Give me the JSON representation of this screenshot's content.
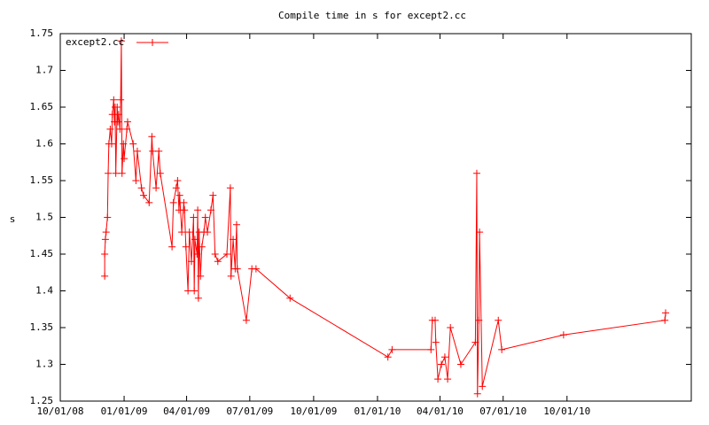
{
  "chart_data": {
    "type": "line",
    "title": "Compile time in s for except2.cc",
    "y_label": "s",
    "legend_position": "top-left",
    "xlim": [
      "2008-10-01",
      "2011-03-29"
    ],
    "xticks": [
      {
        "value": "2008-10-01",
        "label": "10/01/08"
      },
      {
        "value": "2009-01-01",
        "label": "01/01/09"
      },
      {
        "value": "2009-04-01",
        "label": "04/01/09"
      },
      {
        "value": "2009-07-01",
        "label": "07/01/09"
      },
      {
        "value": "2009-10-01",
        "label": "10/01/09"
      },
      {
        "value": "2010-01-01",
        "label": "01/01/10"
      },
      {
        "value": "2010-04-01",
        "label": "04/01/10"
      },
      {
        "value": "2010-07-01",
        "label": "07/01/10"
      },
      {
        "value": "2010-10-01",
        "label": "10/01/10"
      }
    ],
    "ylim": [
      1.25,
      1.75
    ],
    "yticks": [
      1.25,
      1.3,
      1.35,
      1.4,
      1.45,
      1.5,
      1.55,
      1.6,
      1.65,
      1.7,
      1.75
    ],
    "x": [
      "2008-12-04",
      "2008-12-04",
      "2008-12-05",
      "2008-12-06",
      "2008-12-08",
      "2008-12-09",
      "2008-12-10",
      "2008-12-12",
      "2008-12-14",
      "2008-12-15",
      "2008-12-17",
      "2008-12-18",
      "2008-12-19",
      "2008-12-20",
      "2008-12-22",
      "2008-12-23",
      "2008-12-24",
      "2008-12-26",
      "2008-12-27",
      "2008-12-28",
      "2008-12-29",
      "2008-12-31",
      "2009-01-01",
      "2009-01-05",
      "2009-01-06",
      "2009-01-14",
      "2009-01-18",
      "2009-01-20",
      "2009-01-26",
      "2009-01-29",
      "2009-02-06",
      "2009-02-10",
      "2009-02-11",
      "2009-02-16",
      "2009-02-20",
      "2009-02-22",
      "2009-03-11",
      "2009-03-13",
      "2009-03-17",
      "2009-03-19",
      "2009-03-21",
      "2009-03-22",
      "2009-03-25",
      "2009-03-28",
      "2009-03-29",
      "2009-03-31",
      "2009-04-03",
      "2009-04-05",
      "2009-04-08",
      "2009-04-11",
      "2009-04-12",
      "2009-04-13",
      "2009-04-16",
      "2009-04-17",
      "2009-04-18",
      "2009-04-19",
      "2009-04-21",
      "2009-04-23",
      "2009-04-26",
      "2009-04-28",
      "2009-05-01",
      "2009-05-06",
      "2009-05-09",
      "2009-05-12",
      "2009-05-16",
      "2009-05-29",
      "2009-06-03",
      "2009-06-04",
      "2009-06-07",
      "2009-06-10",
      "2009-06-12",
      "2009-06-13",
      "2009-06-26",
      "2009-07-04",
      "2009-07-10",
      "2009-08-28",
      "2010-01-16",
      "2010-01-22",
      "2010-03-19",
      "2010-03-21",
      "2010-03-25",
      "2010-03-26",
      "2010-03-29",
      "2010-04-03",
      "2010-04-08",
      "2010-04-12",
      "2010-04-16",
      "2010-05-01",
      "2010-05-22",
      "2010-05-24",
      "2010-05-25",
      "2010-05-27",
      "2010-05-28",
      "2010-06-01",
      "2010-06-24",
      "2010-06-29",
      "2010-09-26",
      "2011-02-19",
      "2011-02-20"
    ],
    "series": [
      {
        "name": "except2.cc",
        "color": "#ff0000",
        "values": [
          1.42,
          1.45,
          1.47,
          1.48,
          1.5,
          1.56,
          1.6,
          1.62,
          1.6,
          1.64,
          1.66,
          1.63,
          1.65,
          1.56,
          1.65,
          1.63,
          1.64,
          1.62,
          1.66,
          1.74,
          1.56,
          1.6,
          1.58,
          1.62,
          1.63,
          1.6,
          1.55,
          1.59,
          1.54,
          1.53,
          1.52,
          1.61,
          1.59,
          1.54,
          1.59,
          1.56,
          1.46,
          1.52,
          1.54,
          1.55,
          1.51,
          1.53,
          1.48,
          1.52,
          1.51,
          1.46,
          1.4,
          1.48,
          1.44,
          1.5,
          1.4,
          1.47,
          1.45,
          1.51,
          1.39,
          1.48,
          1.42,
          1.46,
          1.48,
          1.5,
          1.48,
          1.51,
          1.53,
          1.45,
          1.44,
          1.45,
          1.54,
          1.42,
          1.47,
          1.43,
          1.49,
          1.43,
          1.36,
          1.43,
          1.43,
          1.39,
          1.31,
          1.32,
          1.32,
          1.36,
          1.36,
          1.33,
          1.28,
          1.3,
          1.31,
          1.28,
          1.35,
          1.3,
          1.33,
          1.56,
          1.26,
          1.36,
          1.48,
          1.27,
          1.36,
          1.32,
          1.34,
          1.36,
          1.37
        ]
      }
    ]
  }
}
